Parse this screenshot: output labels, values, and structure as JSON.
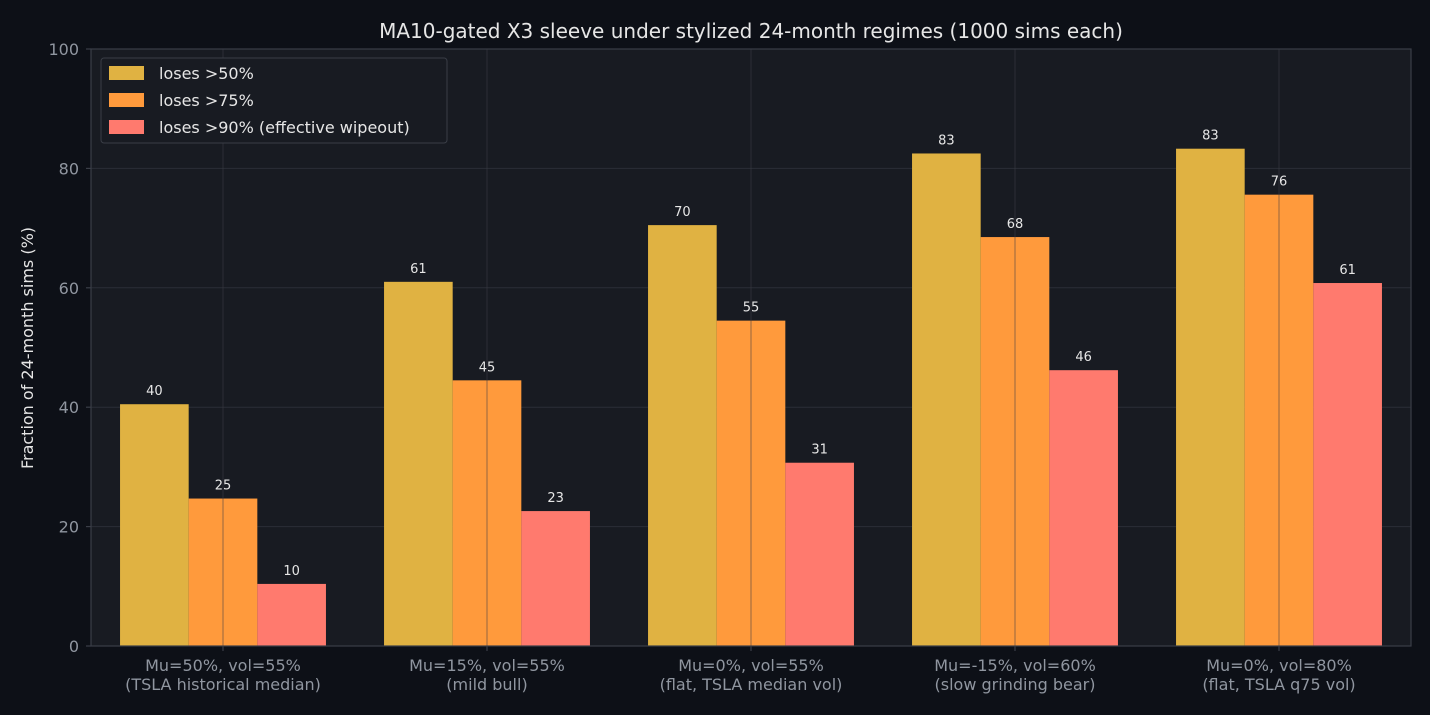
{
  "chart_data": {
    "type": "bar",
    "title": "MA10-gated X3 sleeve under stylized 24-month regimes (1000 sims each)",
    "xlabel": "",
    "ylabel": "Fraction of 24-month sims (%)",
    "ylim": [
      0,
      100
    ],
    "yticks": [
      0,
      20,
      40,
      60,
      80,
      100
    ],
    "grid": true,
    "legend_position": "top-left",
    "categories": [
      [
        "Mu=50%, vol=55%",
        "(TSLA historical median)"
      ],
      [
        "Mu=15%, vol=55%",
        "(mild bull)"
      ],
      [
        "Mu=0%, vol=55%",
        "(flat, TSLA median vol)"
      ],
      [
        "Mu=-15%, vol=60%",
        "(slow grinding bear)"
      ],
      [
        "Mu=0%, vol=80%",
        "(flat, TSLA q75 vol)"
      ]
    ],
    "series": [
      {
        "name": "loses >50%",
        "color": "#e0b242",
        "values": [
          40.5,
          61.0,
          70.5,
          82.5,
          83.3
        ],
        "labels": [
          "40",
          "61",
          "70",
          "83",
          "83"
        ]
      },
      {
        "name": "loses >75%",
        "color": "#ff9a3c",
        "values": [
          24.7,
          44.5,
          54.5,
          68.5,
          75.6
        ],
        "labels": [
          "25",
          "45",
          "55",
          "68",
          "76"
        ]
      },
      {
        "name": "loses >90% (effective wipeout)",
        "color": "#ff7a6e",
        "values": [
          10.4,
          22.6,
          30.7,
          46.2,
          60.8
        ],
        "labels": [
          "10",
          "23",
          "31",
          "46",
          "61"
        ]
      }
    ]
  },
  "style": {
    "page_bg": "#0d1017",
    "plot_bg": "#181b22",
    "spine": "#3a3e47",
    "grid": "#2a2e37",
    "text_muted": "#9096a0",
    "text_main": "#e6e6e6"
  }
}
